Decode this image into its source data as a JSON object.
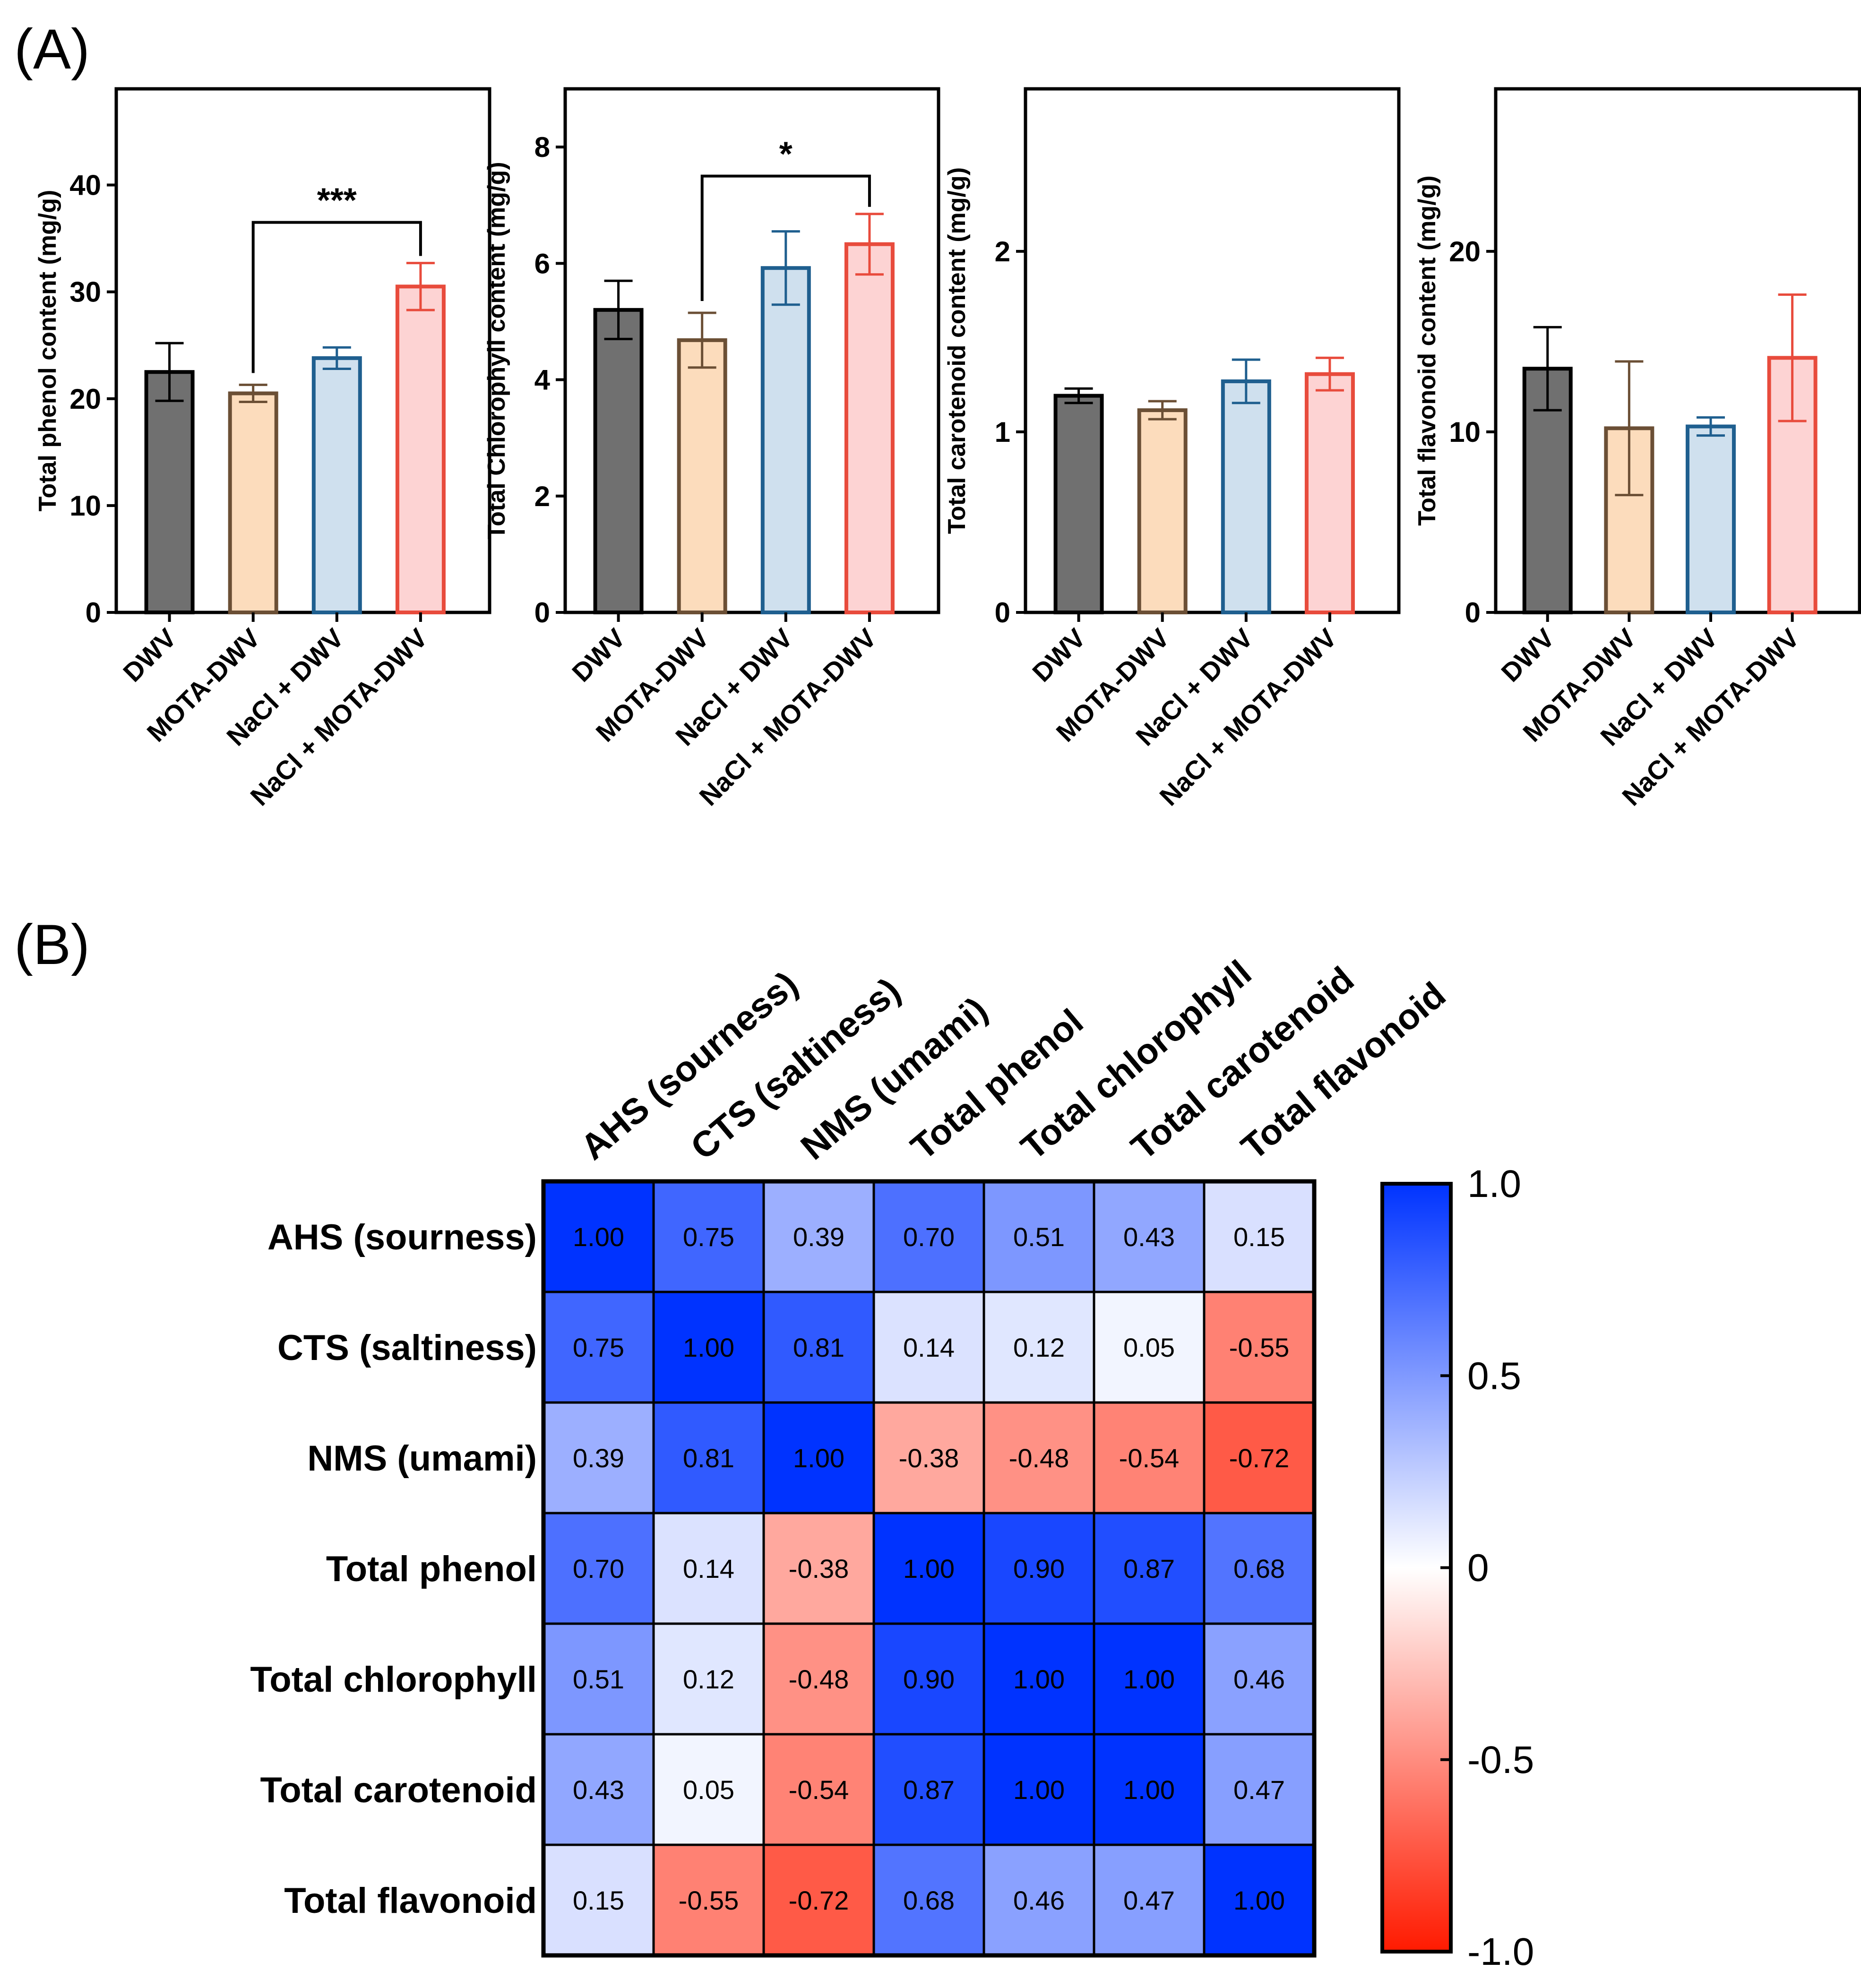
{
  "panels": {
    "a_label": "(A)",
    "b_label": "(B)"
  },
  "colors": {
    "DWV": {
      "fill": "#707070",
      "stroke": "#000000"
    },
    "MOTA-DWV": {
      "fill": "#fcdcbc",
      "stroke": "#6b4f35"
    },
    "NaCl + DWV": {
      "fill": "#cfe0ee",
      "stroke": "#1f5f8f"
    },
    "NaCl + MOTA-DWV": {
      "fill": "#fdd3d3",
      "stroke": "#e84b3c"
    }
  },
  "chart_data": [
    {
      "type": "bar",
      "title": "",
      "ylabel": "Total phenol content  (mg/g)",
      "categories": [
        "DWV",
        "MOTA-DWV",
        "NaCl + DWV",
        "NaCl + MOTA-DWV"
      ],
      "values": [
        22.5,
        20.5,
        23.8,
        30.5
      ],
      "errors": [
        2.7,
        0.8,
        1.0,
        2.2
      ],
      "ylim": [
        0,
        49
      ],
      "yticks": [
        "0",
        "10",
        "20",
        "30",
        "40"
      ],
      "significance": {
        "from": 1,
        "to": 3,
        "label": "***",
        "y": 36.5
      }
    },
    {
      "type": "bar",
      "title": "",
      "ylabel": "Total Chlorophyll content  (mg/g)",
      "categories": [
        "DWV",
        "MOTA-DWV",
        "NaCl + DWV",
        "NaCl + MOTA-DWV"
      ],
      "values": [
        5.2,
        4.68,
        5.92,
        6.33
      ],
      "errors": [
        0.5,
        0.47,
        0.63,
        0.52
      ],
      "ylim": [
        0,
        9
      ],
      "yticks": [
        "0",
        "2",
        "4",
        "6",
        "8"
      ],
      "significance": {
        "from": 1,
        "to": 3,
        "label": "*",
        "y": 7.5
      }
    },
    {
      "type": "bar",
      "title": "",
      "ylabel": "Total carotenoid content  (mg/g)",
      "categories": [
        "DWV",
        "MOTA-DWV",
        "NaCl + DWV",
        "NaCl + MOTA-DWV"
      ],
      "values": [
        1.2,
        1.12,
        1.28,
        1.32
      ],
      "errors": [
        0.04,
        0.05,
        0.12,
        0.09
      ],
      "ylim": [
        0,
        2.9
      ],
      "yticks": [
        "0",
        "1",
        "2"
      ],
      "significance": null
    },
    {
      "type": "bar",
      "title": "",
      "ylabel": "Total flavonoid content  (mg/g)",
      "categories": [
        "DWV",
        "MOTA-DWV",
        "NaCl + DWV",
        "NaCl + MOTA-DWV"
      ],
      "values": [
        13.5,
        10.2,
        10.3,
        14.1
      ],
      "errors": [
        2.3,
        3.7,
        0.5,
        3.5
      ],
      "ylim": [
        0,
        29
      ],
      "yticks": [
        "0",
        "10",
        "20"
      ],
      "significance": null
    },
    {
      "type": "heatmap",
      "title": "",
      "rows": [
        "AHS (sourness)",
        "CTS (saltiness)",
        "NMS (umami)",
        "Total phenol",
        "Total chlorophyll",
        "Total carotenoid",
        "Total flavonoid"
      ],
      "columns": [
        "AHS (sourness)",
        "CTS (saltiness)",
        "NMS (umami)",
        "Total phenol",
        "Total chlorophyll",
        "Total carotenoid",
        "Total flavonoid"
      ],
      "values": [
        [
          "1.00",
          "0.75",
          "0.39",
          "0.70",
          "0.51",
          "0.43",
          "0.15"
        ],
        [
          "0.75",
          "1.00",
          "0.81",
          "0.14",
          "0.12",
          "0.05",
          "-0.55"
        ],
        [
          "0.39",
          "0.81",
          "1.00",
          "-0.38",
          "-0.48",
          "-0.54",
          "-0.72"
        ],
        [
          "0.70",
          "0.14",
          "-0.38",
          "1.00",
          "0.90",
          "0.87",
          "0.68"
        ],
        [
          "0.51",
          "0.12",
          "-0.48",
          "0.90",
          "1.00",
          "1.00",
          "0.46"
        ],
        [
          "0.43",
          "0.05",
          "-0.54",
          "0.87",
          "1.00",
          "1.00",
          "0.47"
        ],
        [
          "0.15",
          "-0.55",
          "-0.72",
          "0.68",
          "0.46",
          "0.47",
          "1.00"
        ]
      ],
      "colorbar": {
        "range": [
          -1.0,
          1.0
        ],
        "ticks": [
          "1.0",
          "0.5",
          "0",
          "-0.5",
          "-1.0"
        ],
        "positive_color": "#0033ff",
        "negative_color": "#ff1a00",
        "neutral_color": "#ffffff"
      }
    }
  ]
}
